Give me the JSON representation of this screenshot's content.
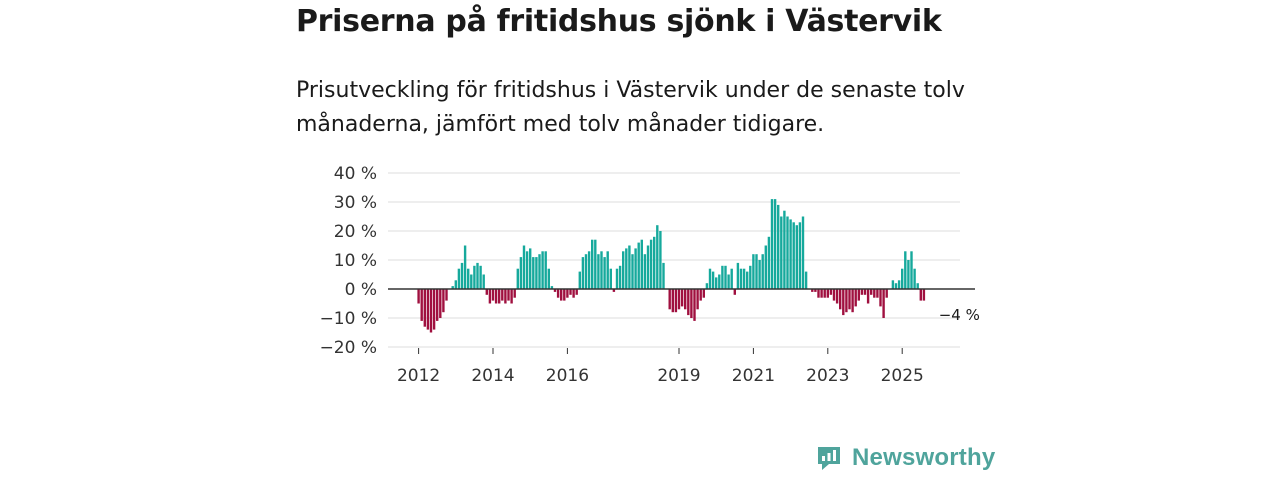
{
  "title": "Priserna på fritidshus sjönk i Västervik",
  "subtitle": "Prisutveckling för fritidshus i Västervik under de senaste tolv månaderna, jämfört med tolv månader tidigare.",
  "brand": {
    "name": "Newsworthy",
    "icon": "newsworthy-logo-icon"
  },
  "colors": {
    "positive": "#16a99c",
    "negative": "#a0103f",
    "grid": "#dddddd",
    "zero_line": "#333333",
    "brand": "#4fa49c"
  },
  "chart_data": {
    "type": "bar",
    "title": "Priserna på fritidshus sjönk i Västervik",
    "xlabel": "",
    "ylabel": "",
    "ylim": [
      -20,
      40
    ],
    "y_ticks": [
      40,
      30,
      20,
      10,
      0,
      -10,
      -20
    ],
    "y_tick_labels": [
      "40 %",
      "30 %",
      "20 %",
      "10 %",
      "0 %",
      "−10 %",
      "−20 %"
    ],
    "x_ticks": [
      {
        "label": "2012",
        "index": 0
      },
      {
        "label": "2014",
        "index": 24
      },
      {
        "label": "2016",
        "index": 48
      },
      {
        "label": "2019",
        "index": 84
      },
      {
        "label": "2021",
        "index": 108
      },
      {
        "label": "2023",
        "index": 132
      },
      {
        "label": "2025",
        "index": 156
      }
    ],
    "start": "2012-01",
    "frequency": "monthly",
    "values": [
      -5,
      -11,
      -13,
      -14,
      -15,
      -14,
      -11,
      -10,
      -8,
      -4,
      0,
      1,
      3,
      7,
      9,
      15,
      7,
      5,
      8,
      9,
      8,
      5,
      -2,
      -5,
      -4,
      -5,
      -5,
      -4,
      -5,
      -4,
      -5,
      -3,
      7,
      11,
      15,
      13,
      14,
      11,
      11,
      12,
      13,
      13,
      7,
      1,
      -1,
      -3,
      -4,
      -4,
      -3,
      -2,
      -3,
      -2,
      6,
      11,
      12,
      13,
      17,
      17,
      12,
      13,
      11,
      13,
      7,
      -1,
      7,
      8,
      13,
      14,
      15,
      12,
      14,
      16,
      17,
      12,
      15,
      17,
      18,
      22,
      20,
      9,
      0,
      -7,
      -8,
      -8,
      -7,
      -6,
      -7,
      -9,
      -10,
      -11,
      -7,
      -4,
      -3,
      2,
      7,
      6,
      4,
      5,
      8,
      8,
      5,
      7,
      -2,
      9,
      7,
      7,
      6,
      8,
      12,
      12,
      10,
      12,
      15,
      18,
      31,
      31,
      29,
      25,
      27,
      25,
      24,
      23,
      22,
      23,
      25,
      6,
      0,
      -1,
      -1,
      -3,
      -3,
      -3,
      -3,
      -2,
      -4,
      -5,
      -7,
      -9,
      -8,
      -7,
      -8,
      -6,
      -4,
      -2,
      -2,
      -5,
      -2,
      -3,
      -3,
      -6,
      -10,
      -3,
      0,
      3,
      2,
      3,
      7,
      13,
      10,
      13,
      7,
      2,
      -4,
      -4
    ],
    "annotation": {
      "text": "−4 %",
      "value": -4,
      "index": 167
    }
  }
}
